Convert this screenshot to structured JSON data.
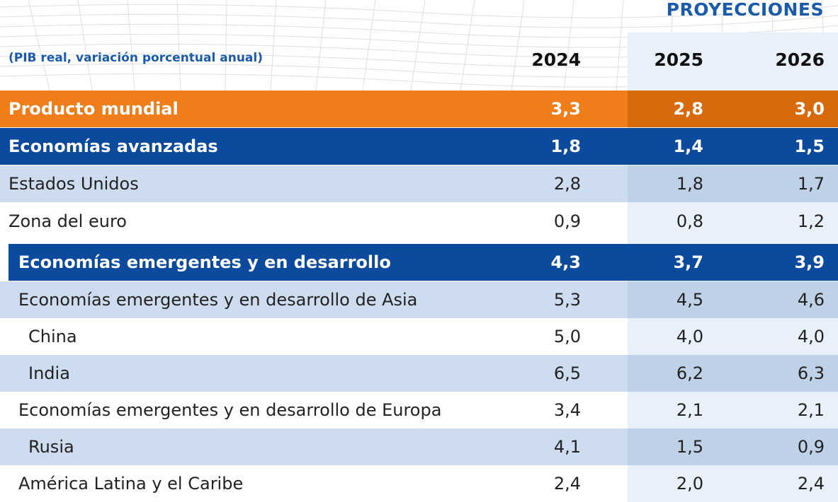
{
  "header": {
    "projections_label": "PROYECCIONES",
    "subtitle": "(PIB real, variación porcentual anual)",
    "years": [
      "2024",
      "2025",
      "2026"
    ]
  },
  "colors": {
    "orange": "#ee7d1a",
    "navy": "#0b4a9c",
    "light_blue": "#cddcee",
    "title_blue": "#1a5aa8"
  },
  "rows": [
    {
      "label": "Producto mundial",
      "values": [
        "3,3",
        "2,8",
        "3,0"
      ]
    },
    {
      "label": "Economías avanzadas",
      "values": [
        "1,8",
        "1,4",
        "1,5"
      ]
    },
    {
      "label": "Estados Unidos",
      "values": [
        "2,8",
        "1,8",
        "1,7"
      ]
    },
    {
      "label": "Zona del euro",
      "values": [
        "0,9",
        "0,8",
        "1,2"
      ]
    },
    {
      "label": "Economías emergentes y en desarrollo",
      "values": [
        "4,3",
        "3,7",
        "3,9"
      ]
    },
    {
      "label": "Economías emergentes y en desarrollo de Asia",
      "values": [
        "5,3",
        "4,5",
        "4,6"
      ]
    },
    {
      "label": "China",
      "values": [
        "5,0",
        "4,0",
        "4,0"
      ]
    },
    {
      "label": "India",
      "values": [
        "6,5",
        "6,2",
        "6,3"
      ]
    },
    {
      "label": "Economías emergentes y en desarrollo de Europa",
      "values": [
        "3,4",
        "2,1",
        "2,1"
      ]
    },
    {
      "label": "Rusia",
      "values": [
        "4,1",
        "1,5",
        "0,9"
      ]
    },
    {
      "label": "América Latina y el Caribe",
      "values": [
        "2,4",
        "2,0",
        "2,4"
      ]
    }
  ]
}
